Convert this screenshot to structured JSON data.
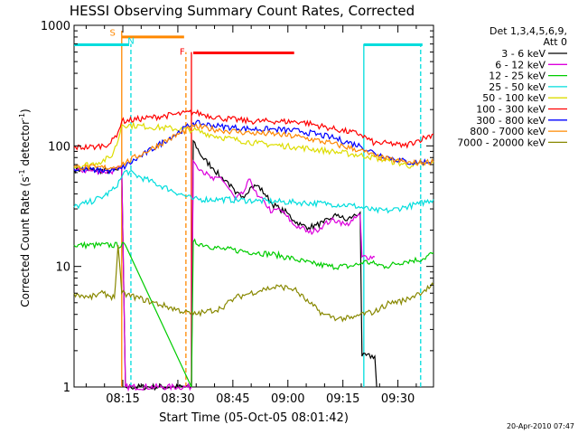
{
  "chart_data": {
    "type": "line",
    "title": "HESSI Observing Summary Count Rates, Corrected",
    "xlabel": "Start Time (05-Oct-05 08:01:42)",
    "ylabel": "Corrected Count Rate (s",
    "ylabel_sup1": "-1",
    "ylabel_mid": " detector",
    "ylabel_sup2": "-1",
    "ylabel_end": ")",
    "y_scale": "log",
    "ylim": [
      1,
      1000
    ],
    "xlim_minutes": [
      0,
      98
    ],
    "x_tick_labels": [
      "08:15",
      "08:30",
      "08:45",
      "09:00",
      "09:15",
      "09:30"
    ],
    "x_tick_minutes": [
      13.3,
      28.3,
      43.3,
      58.3,
      73.3,
      88.3
    ],
    "y_tick_labels": [
      "1",
      "10",
      "100",
      "1000"
    ],
    "y_tick_values": [
      1,
      10,
      100,
      1000
    ],
    "legend_title": [
      "Det 1,3,4,5,6,9,",
      "Att 0"
    ],
    "legend_placement": "right",
    "series": [
      {
        "name": "3 - 6 keV",
        "color": "#000000",
        "points": [
          [
            0,
            64
          ],
          [
            5,
            63
          ],
          [
            10,
            62
          ],
          [
            12,
            63
          ],
          [
            13,
            65
          ],
          [
            14,
            1
          ],
          [
            32,
            1
          ],
          [
            32.5,
            110
          ],
          [
            35,
            80
          ],
          [
            38,
            65
          ],
          [
            40,
            55
          ],
          [
            42,
            50
          ],
          [
            44,
            40
          ],
          [
            46,
            38
          ],
          [
            48,
            45
          ],
          [
            50,
            47
          ],
          [
            52,
            40
          ],
          [
            54,
            33
          ],
          [
            56,
            30
          ],
          [
            58,
            28
          ],
          [
            60,
            24
          ],
          [
            62,
            22
          ],
          [
            64,
            21
          ],
          [
            66,
            22
          ],
          [
            68,
            23
          ],
          [
            70,
            25
          ],
          [
            72,
            27
          ],
          [
            74,
            24
          ],
          [
            76,
            26
          ],
          [
            78,
            28
          ],
          [
            78.5,
            1.8
          ],
          [
            82,
            1.8
          ],
          [
            82.5,
            1
          ]
        ]
      },
      {
        "name": "6 - 12 keV",
        "color": "#dd00dd",
        "points": [
          [
            0,
            63
          ],
          [
            5,
            62
          ],
          [
            10,
            61
          ],
          [
            12,
            64
          ],
          [
            13,
            66
          ],
          [
            14,
            1
          ],
          [
            32,
            1
          ],
          [
            32.5,
            75
          ],
          [
            35,
            62
          ],
          [
            38,
            52
          ],
          [
            40,
            55
          ],
          [
            42,
            45
          ],
          [
            44,
            36
          ],
          [
            46,
            40
          ],
          [
            48,
            53
          ],
          [
            50,
            38
          ],
          [
            52,
            34
          ],
          [
            54,
            28
          ],
          [
            56,
            30
          ],
          [
            58,
            26
          ],
          [
            60,
            22
          ],
          [
            62,
            21
          ],
          [
            64,
            19
          ],
          [
            66,
            20
          ],
          [
            68,
            22
          ],
          [
            70,
            24
          ],
          [
            72,
            24
          ],
          [
            74,
            22
          ],
          [
            76,
            24
          ],
          [
            78,
            27
          ],
          [
            78.5,
            12
          ],
          [
            82,
            12
          ]
        ]
      },
      {
        "name": "12 - 25 keV",
        "color": "#00cc00",
        "points": [
          [
            0,
            15
          ],
          [
            14,
            15
          ],
          [
            32,
            1
          ],
          [
            32.5,
            16
          ],
          [
            36,
            15
          ],
          [
            40,
            14
          ],
          [
            45,
            13.5
          ],
          [
            50,
            13
          ],
          [
            55,
            12.5
          ],
          [
            60,
            11.5
          ],
          [
            65,
            10.5
          ],
          [
            70,
            10
          ],
          [
            75,
            10
          ],
          [
            78,
            10.5
          ],
          [
            79,
            11
          ],
          [
            82,
            10.5
          ],
          [
            85,
            10
          ],
          [
            90,
            11
          ],
          [
            95,
            11.5
          ],
          [
            98,
            13
          ]
        ]
      },
      {
        "name": "25 - 50 keV",
        "color": "#00dddd",
        "points": [
          [
            0,
            31
          ],
          [
            4,
            34
          ],
          [
            8,
            38
          ],
          [
            11,
            44
          ],
          [
            13,
            55
          ],
          [
            14,
            62
          ],
          [
            32.5,
            36
          ],
          [
            40,
            36
          ],
          [
            50,
            35
          ],
          [
            60,
            34
          ],
          [
            70,
            33
          ],
          [
            76,
            32
          ],
          [
            82,
            29
          ],
          [
            86,
            29
          ],
          [
            90,
            31
          ],
          [
            94,
            33
          ],
          [
            98,
            36
          ]
        ]
      },
      {
        "name": "50 - 100 keV",
        "color": "#dddd00",
        "points": [
          [
            0,
            67
          ],
          [
            6,
            72
          ],
          [
            10,
            80
          ],
          [
            12,
            110
          ],
          [
            13,
            150
          ],
          [
            32.5,
            135
          ],
          [
            40,
            118
          ],
          [
            50,
            105
          ],
          [
            60,
            98
          ],
          [
            70,
            90
          ],
          [
            80,
            82
          ],
          [
            86,
            75
          ],
          [
            92,
            68
          ],
          [
            98,
            72
          ]
        ]
      },
      {
        "name": "100 - 300 keV",
        "color": "#ff0000",
        "points": [
          [
            0,
            97
          ],
          [
            6,
            98
          ],
          [
            10,
            105
          ],
          [
            12,
            130
          ],
          [
            13,
            160
          ],
          [
            32.5,
            190
          ],
          [
            40,
            170
          ],
          [
            48,
            160
          ],
          [
            55,
            160
          ],
          [
            62,
            158
          ],
          [
            70,
            140
          ],
          [
            78,
            125
          ],
          [
            82,
            105
          ],
          [
            86,
            105
          ],
          [
            90,
            100
          ],
          [
            94,
            112
          ],
          [
            98,
            125
          ]
        ]
      },
      {
        "name": "300 - 800 keV",
        "color": "#0000ff",
        "points": [
          [
            0,
            64
          ],
          [
            6,
            63
          ],
          [
            10,
            62
          ],
          [
            12,
            64
          ],
          [
            13,
            65
          ],
          [
            32.5,
            155
          ],
          [
            40,
            145
          ],
          [
            48,
            138
          ],
          [
            55,
            137
          ],
          [
            62,
            132
          ],
          [
            70,
            118
          ],
          [
            78,
            100
          ],
          [
            82,
            87
          ],
          [
            86,
            80
          ],
          [
            92,
            72
          ],
          [
            98,
            75
          ]
        ]
      },
      {
        "name": "800 - 7000 keV",
        "color": "#ff8800",
        "points": [
          [
            0,
            67
          ],
          [
            6,
            66
          ],
          [
            10,
            66
          ],
          [
            12,
            68
          ],
          [
            13,
            70
          ],
          [
            32.5,
            145
          ],
          [
            40,
            135
          ],
          [
            48,
            128
          ],
          [
            55,
            125
          ],
          [
            62,
            118
          ],
          [
            70,
            105
          ],
          [
            78,
            92
          ],
          [
            82,
            82
          ],
          [
            86,
            77
          ],
          [
            92,
            72
          ],
          [
            98,
            74
          ]
        ]
      },
      {
        "name": "7000 - 20000 keV",
        "color": "#888800",
        "points": [
          [
            0,
            6
          ],
          [
            4,
            5.5
          ],
          [
            8,
            6
          ],
          [
            11,
            5.5
          ],
          [
            12,
            15
          ],
          [
            13,
            6
          ],
          [
            32.5,
            4
          ],
          [
            36,
            4.2
          ],
          [
            40,
            4.5
          ],
          [
            44,
            5.5
          ],
          [
            48,
            6
          ],
          [
            52,
            6.5
          ],
          [
            56,
            6.8
          ],
          [
            60,
            6.5
          ],
          [
            64,
            5
          ],
          [
            68,
            4
          ],
          [
            72,
            3.7
          ],
          [
            76,
            3.7
          ],
          [
            78,
            4
          ],
          [
            82,
            4.2
          ],
          [
            86,
            5
          ],
          [
            90,
            5.2
          ],
          [
            94,
            6
          ],
          [
            98,
            7
          ]
        ]
      }
    ],
    "flag_bars": [
      {
        "label": "",
        "color": "#00dddd",
        "y_value": 690,
        "x_start": 0,
        "x_end": 15
      },
      {
        "label": "S",
        "color": "#ff8800",
        "y_value": 800,
        "x_start": 13,
        "x_end": 30
      },
      {
        "label": "F",
        "color": "#ff0000",
        "y_value": 590,
        "x_start": 32.5,
        "x_end": 60
      },
      {
        "label": "",
        "color": "#00dddd",
        "y_value": 690,
        "x_start": 79,
        "x_end": 95
      }
    ],
    "flag_text": [
      {
        "label": "S",
        "color": "#ff8800",
        "x": 10.5,
        "y_value": 820
      },
      {
        "label": "N",
        "color": "#00dddd",
        "x": 15.5,
        "y_value": 700
      },
      {
        "label": "F",
        "color": "#ff0000",
        "x": 29.5,
        "y_value": 570
      }
    ],
    "vertical_lines": [
      {
        "x": 13,
        "color": "#ff8800",
        "style": "solid",
        "y_from": 1,
        "y_to": 900
      },
      {
        "x": 15.5,
        "color": "#00dddd",
        "style": "dashed",
        "y_from": 1,
        "y_to": 700
      },
      {
        "x": 30.5,
        "color": "#ff8800",
        "style": "dashed",
        "y_from": 1,
        "y_to": 600
      },
      {
        "x": 32,
        "color": "#ff0000",
        "style": "solid",
        "y_from": 1,
        "y_to": 600
      },
      {
        "x": 79,
        "color": "#00dddd",
        "style": "solid",
        "y_from": 1,
        "y_to": 700
      },
      {
        "x": 94.5,
        "color": "#00dddd",
        "style": "dashed",
        "y_from": 1,
        "y_to": 700
      }
    ],
    "timestamp": "20-Apr-2010 07:47"
  }
}
